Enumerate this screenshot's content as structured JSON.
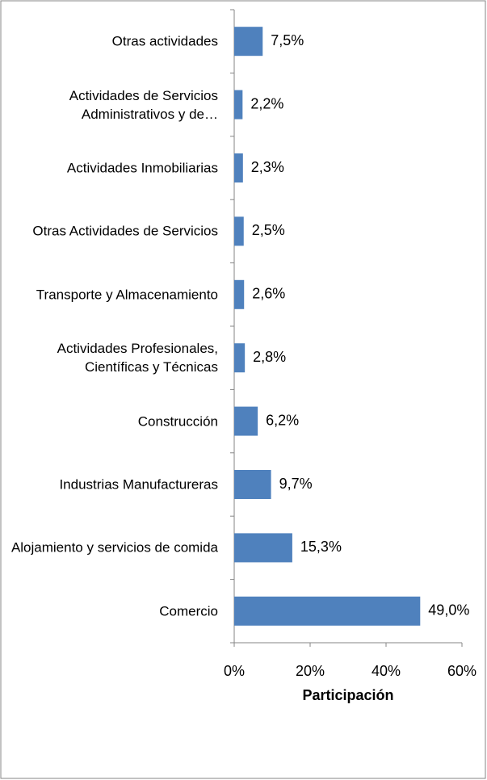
{
  "chart_data": {
    "type": "bar",
    "orientation": "horizontal",
    "categories": [
      "Otras actividades",
      "Actividades de Servicios Administrativos y de…",
      "Actividades Inmobiliarias",
      "Otras Actividades de Servicios",
      "Transporte y Almacenamiento",
      "Actividades Profesionales, Científicas y Técnicas",
      "Construcción",
      "Industrias Manufactureras",
      "Alojamiento y servicios de comida",
      "Comercio"
    ],
    "values": [
      7.5,
      2.2,
      2.3,
      2.5,
      2.6,
      2.8,
      6.2,
      9.7,
      15.3,
      49.0
    ],
    "value_labels": [
      "7,5%",
      "2,2%",
      "2,3%",
      "2,5%",
      "2,6%",
      "2,8%",
      "6,2%",
      "9,7%",
      "15,3%",
      "49,0%"
    ],
    "color": "#4f81bd",
    "xlim": [
      0,
      60
    ],
    "xticks": [
      {
        "value": 0,
        "label": "0%"
      },
      {
        "value": 20,
        "label": "20%"
      },
      {
        "value": 40,
        "label": "40%"
      },
      {
        "value": 60,
        "label": "60%"
      }
    ],
    "x_label": "Participación",
    "grid": false
  }
}
